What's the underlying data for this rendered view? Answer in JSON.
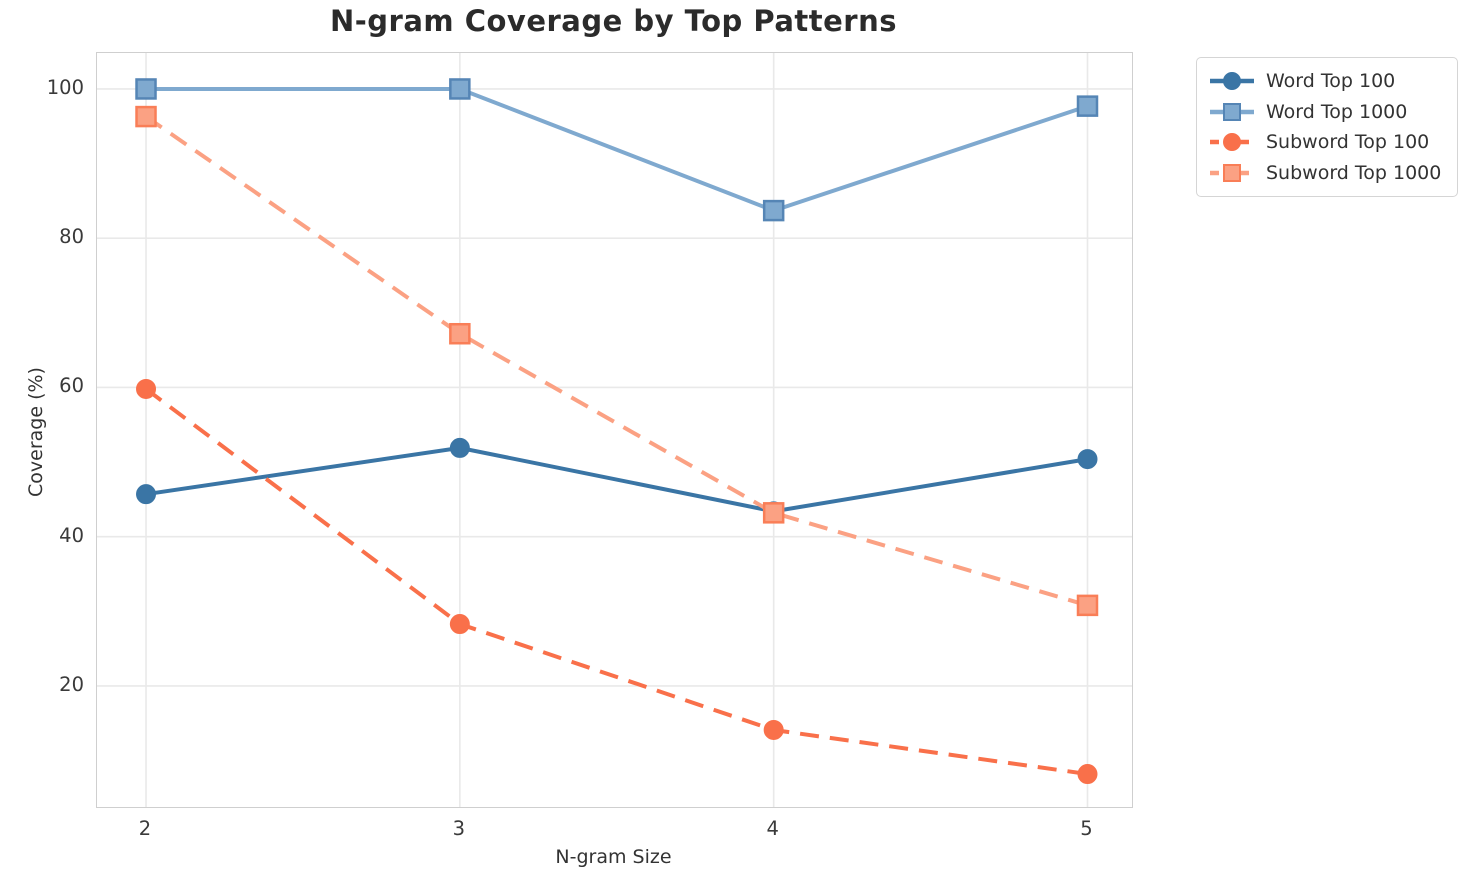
{
  "title": "N-gram Coverage by Top Patterns",
  "chart_data": {
    "type": "line",
    "title": "N-gram Coverage by Top Patterns",
    "xlabel": "N-gram Size",
    "ylabel": "Coverage (%)",
    "x": [
      2,
      3,
      4,
      5
    ],
    "xticks": [
      2,
      3,
      4,
      5
    ],
    "yticks": [
      20,
      40,
      60,
      80,
      100
    ],
    "xlim": [
      1.8438,
      5.1418
    ],
    "ylim": [
      3.78,
      104.82
    ],
    "grid": true,
    "grid_color": "#e9e9e9",
    "spine_color": "#cfcfcf",
    "legend_position": "outside-upper-right",
    "series": [
      {
        "name": "Word Top 100",
        "values": [
          45.7,
          51.9,
          43.4,
          50.4
        ],
        "color": "#3a75a5",
        "marker": "circle",
        "marker_edge": "#3a75a5",
        "line_style": "solid"
      },
      {
        "name": "Word Top 1000",
        "values": [
          100.0,
          100.0,
          83.7,
          97.7
        ],
        "color": "#7fa9cf",
        "marker": "square",
        "marker_edge": "#5585b5",
        "line_style": "solid"
      },
      {
        "name": "Subword Top 100",
        "values": [
          59.8,
          28.3,
          14.1,
          8.2
        ],
        "color": "#f9704a",
        "marker": "circle",
        "marker_edge": "#f9704a",
        "line_style": "dashed"
      },
      {
        "name": "Subword Top 1000",
        "values": [
          96.3,
          67.2,
          43.2,
          30.8
        ],
        "color": "#fba183",
        "marker": "square",
        "marker_edge": "#f97e57",
        "line_style": "dashed"
      }
    ]
  }
}
